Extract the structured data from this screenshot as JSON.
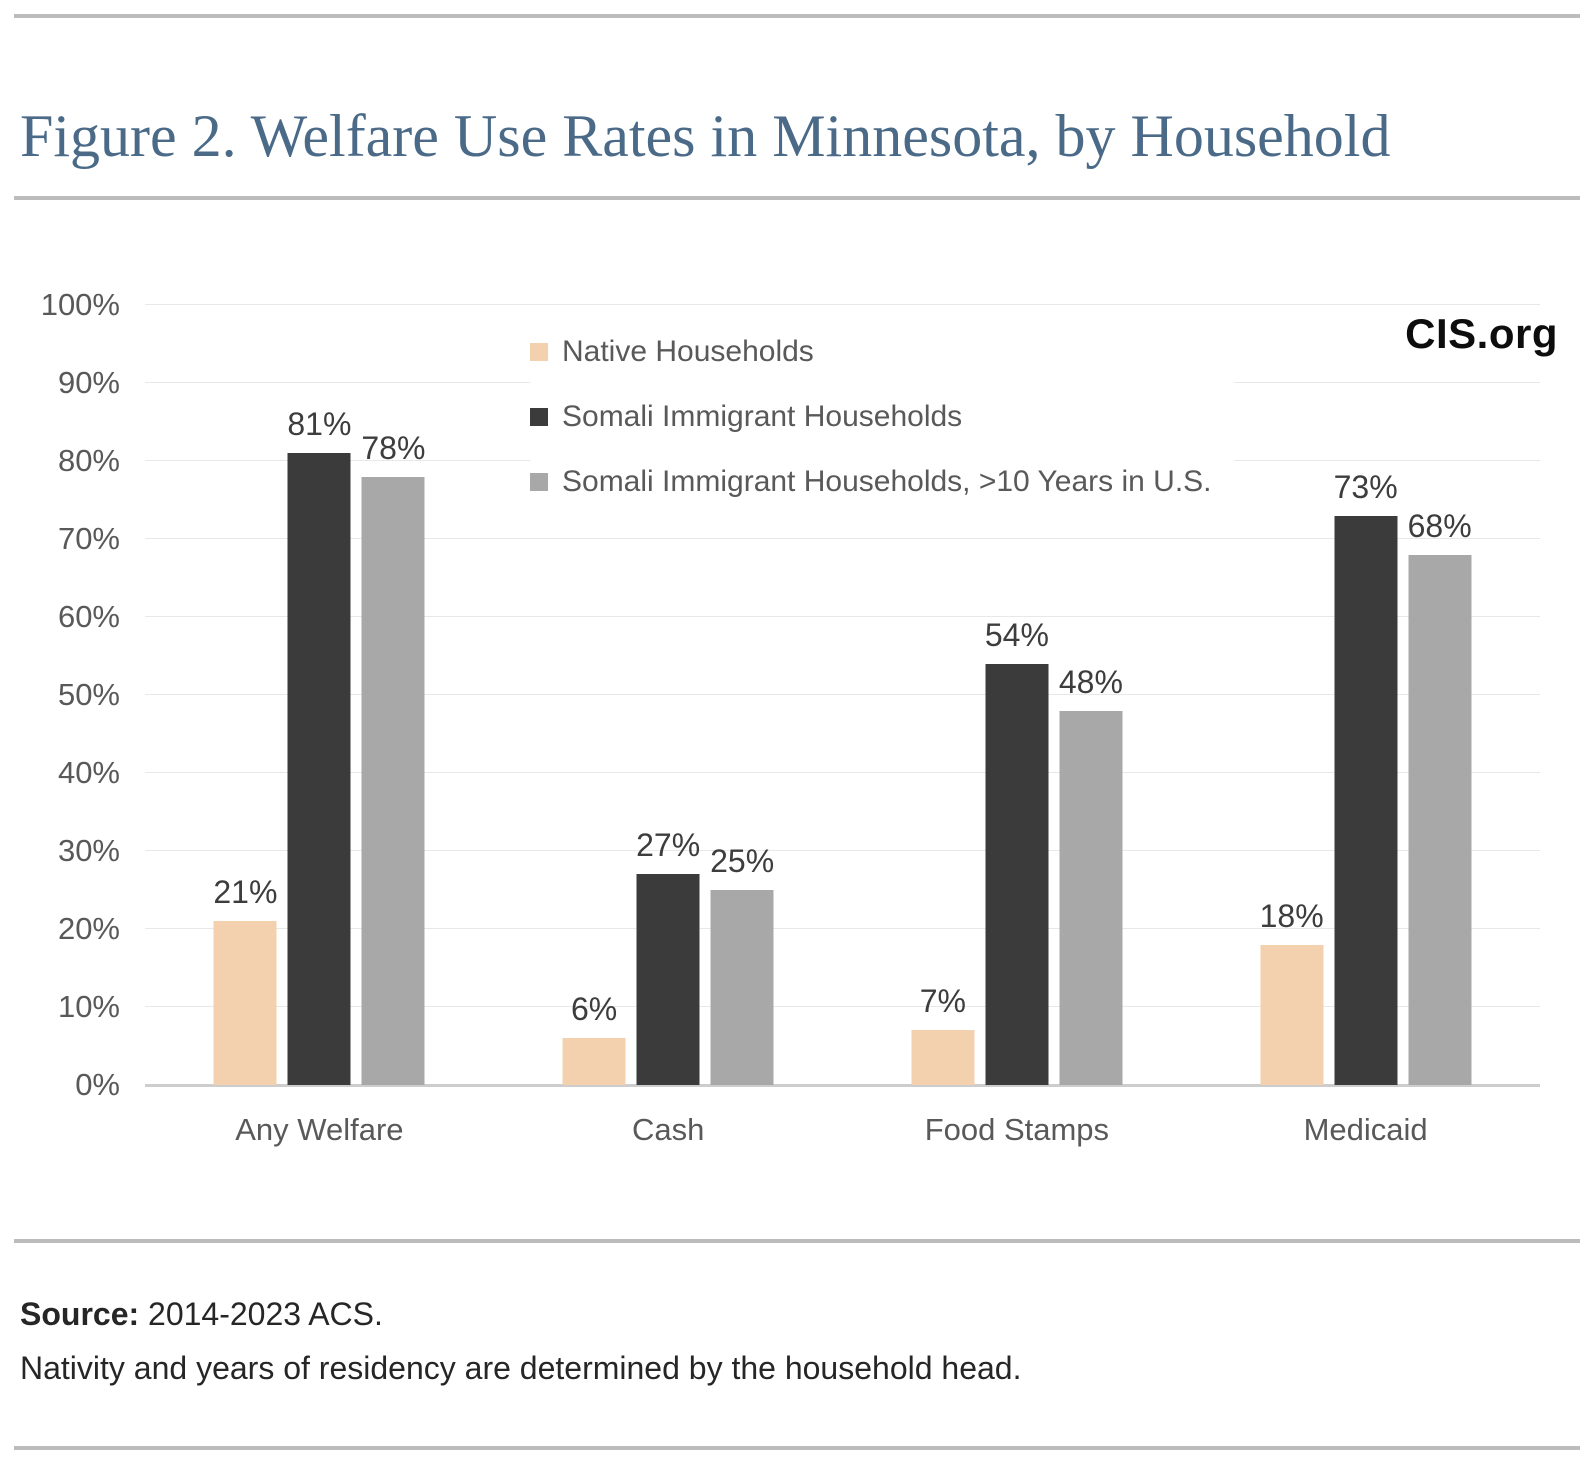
{
  "page": {
    "title": "Figure 2. Welfare Use Rates in Minnesota, by Household",
    "brand": "CIS.org",
    "source_label": "Source:",
    "source_text": "2014-2023 ACS.",
    "note": "Nativity and years of residency are determined by the household head."
  },
  "chart_data": {
    "type": "bar",
    "title": "Figure 2. Welfare Use Rates in Minnesota, by Household",
    "categories": [
      "Any Welfare",
      "Cash",
      "Food Stamps",
      "Medicaid"
    ],
    "series": [
      {
        "name": "Native Households",
        "color": "#f3d0ae",
        "values": [
          21,
          6,
          7,
          18
        ]
      },
      {
        "name": "Somali Immigrant Households",
        "color": "#3b3b3b",
        "values": [
          81,
          27,
          54,
          73
        ]
      },
      {
        "name": "Somali Immigrant Households, >10 Years in U.S.",
        "color": "#a8a8a8",
        "values": [
          78,
          25,
          48,
          68
        ]
      }
    ],
    "xlabel": "",
    "ylabel": "",
    "ylim": [
      0,
      100
    ],
    "ytick_step": 10,
    "ytick_suffix": "%",
    "value_label_suffix": "%",
    "grid": true,
    "legend_position": "top-left-of-plot",
    "colors": {
      "title": "#4a6a88",
      "axis_text": "#595959",
      "value_label": "#3d3d3d",
      "gridline": "#e8e8e8",
      "axis_line": "#cdcdcd",
      "divider": "#bcbcbc",
      "brand_text": "#0d0d0d"
    }
  }
}
